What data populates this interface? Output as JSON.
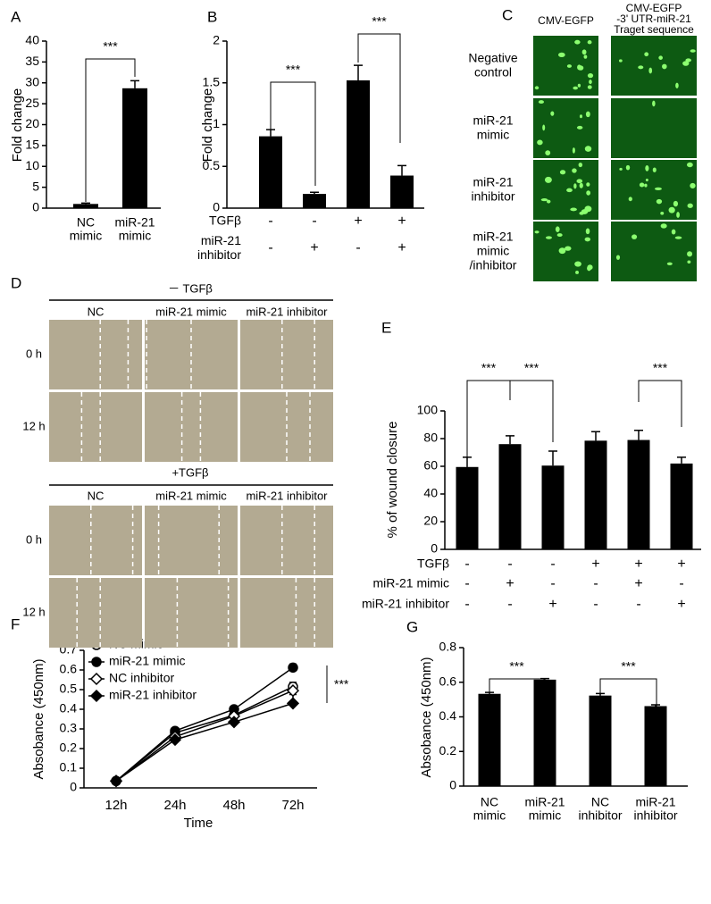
{
  "chart_data": [
    {
      "label": "A",
      "type": "bar",
      "ylabel": "Fold change",
      "categories": [
        "NC\nmimic",
        "miR-21\nmimic"
      ],
      "values": [
        1,
        28.7
      ],
      "errors": [
        0.2,
        1.8
      ],
      "color": "#000000",
      "ylim": [
        0,
        40
      ],
      "yticks": [
        0,
        5,
        10,
        15,
        20,
        25,
        30,
        35,
        40
      ],
      "annotations": [
        "***"
      ]
    },
    {
      "label": "B",
      "type": "bar",
      "ylabel": "Fold change",
      "categories": [
        null,
        null,
        null,
        null
      ],
      "values": [
        0.86,
        0.17,
        1.53,
        0.39
      ],
      "errors": [
        0.08,
        0.02,
        0.18,
        0.12
      ],
      "color": "#000000",
      "ylim": [
        0,
        2
      ],
      "yticks": [
        0,
        0.5,
        1,
        1.5,
        2
      ],
      "conditions": [
        {
          "name": "TGFβ",
          "values": [
            "-",
            "-",
            "+",
            "+"
          ]
        },
        {
          "name": "miR-21\ninhibitor",
          "values": [
            "-",
            "+",
            "-",
            "+"
          ]
        }
      ],
      "annotations": [
        "***",
        "***"
      ]
    },
    {
      "label": "E",
      "type": "bar",
      "ylabel": "% of wound closure",
      "categories": [
        null,
        null,
        null,
        null,
        null,
        null
      ],
      "values": [
        59.5,
        76,
        60.5,
        78.5,
        79,
        62
      ],
      "errors": [
        7,
        6,
        10.5,
        6.5,
        7,
        4.5
      ],
      "color": "#000000",
      "ylim": [
        0,
        100
      ],
      "yticks": [
        0,
        20,
        40,
        60,
        80,
        100
      ],
      "conditions": [
        {
          "name": "TGFβ",
          "values": [
            "-",
            "-",
            "-",
            "+",
            "+",
            "+"
          ]
        },
        {
          "name": "miR-21 mimic",
          "values": [
            "-",
            "+",
            "-",
            "-",
            "+",
            "-"
          ]
        },
        {
          "name": "miR-21 inhibitor",
          "values": [
            "-",
            "-",
            "+",
            "-",
            "-",
            "+"
          ]
        }
      ],
      "annotations": [
        "***",
        "***",
        "***"
      ]
    },
    {
      "label": "F",
      "type": "line",
      "xlabel": "Time",
      "ylabel": "Absobance (450nm)",
      "categories": [
        "12h",
        "24h",
        "48h",
        "72h"
      ],
      "series": [
        {
          "name": "NC mimic",
          "color": "#000000",
          "marker": "circle",
          "fill": "#ffffff",
          "values": [
            0.035,
            0.28,
            0.37,
            0.515
          ],
          "errors": [
            0.004,
            0.008,
            0.01,
            0.022
          ]
        },
        {
          "name": "miR-21 mimic",
          "color": "#000000",
          "marker": "circle",
          "fill": "#000000",
          "values": [
            0.035,
            0.29,
            0.4,
            0.612
          ],
          "errors": [
            0.004,
            0.008,
            0.008,
            0.018
          ]
        },
        {
          "name": "NC inhibitor",
          "color": "#000000",
          "marker": "diamond",
          "fill": "#ffffff",
          "values": [
            0.035,
            0.26,
            0.365,
            0.495
          ],
          "errors": [
            0.004,
            0.01,
            0.01,
            0.025
          ]
        },
        {
          "name": "miR-21 inhibitor",
          "color": "#000000",
          "marker": "diamond",
          "fill": "#000000",
          "values": [
            0.035,
            0.245,
            0.335,
            0.43
          ],
          "errors": [
            0.004,
            0.008,
            0.008,
            0.045
          ]
        }
      ],
      "ylim": [
        0,
        0.7
      ],
      "yticks": [
        0,
        0.1,
        0.2,
        0.3,
        0.4,
        0.5,
        0.6,
        0.7
      ],
      "annotations": [
        "***"
      ]
    },
    {
      "label": "G",
      "type": "bar",
      "ylabel": "Absobance (450nm)",
      "categories": [
        "NC\nmimic",
        "miR-21\nmimic",
        "NC\ninhibitor",
        "miR-21\ninhibitor"
      ],
      "values": [
        0.533,
        0.615,
        0.523,
        0.462
      ],
      "errors": [
        0.008,
        0.006,
        0.012,
        0.008
      ],
      "color": "#000000",
      "ylim": [
        0,
        0.8
      ],
      "yticks": [
        0,
        0.2,
        0.4,
        0.6,
        0.8
      ],
      "annotations": [
        "***",
        "***"
      ]
    }
  ],
  "fluorescence": {
    "label": "C",
    "columns": [
      "CMV-EGFP",
      "CMV-EGFP\n-3' UTR-miR-21\nTraget sequence"
    ],
    "rows": [
      "Negative\ncontrol",
      "miR-21\nmimic",
      "miR-21\ninhibitor",
      "miR-21\nmimic\n/inhibitor"
    ]
  },
  "wound_healing": {
    "label": "D",
    "groups": [
      {
        "title": "－ TGFβ",
        "columns": [
          "NC",
          "miR-21 mimic",
          "miR-21 inhibitor"
        ],
        "rows": [
          "0 h",
          "12 h"
        ]
      },
      {
        "title": "+TGFβ",
        "columns": [
          "NC",
          "miR-21 mimic",
          "miR-21 inhibitor"
        ],
        "rows": [
          "0 h",
          "12 h"
        ]
      }
    ]
  }
}
